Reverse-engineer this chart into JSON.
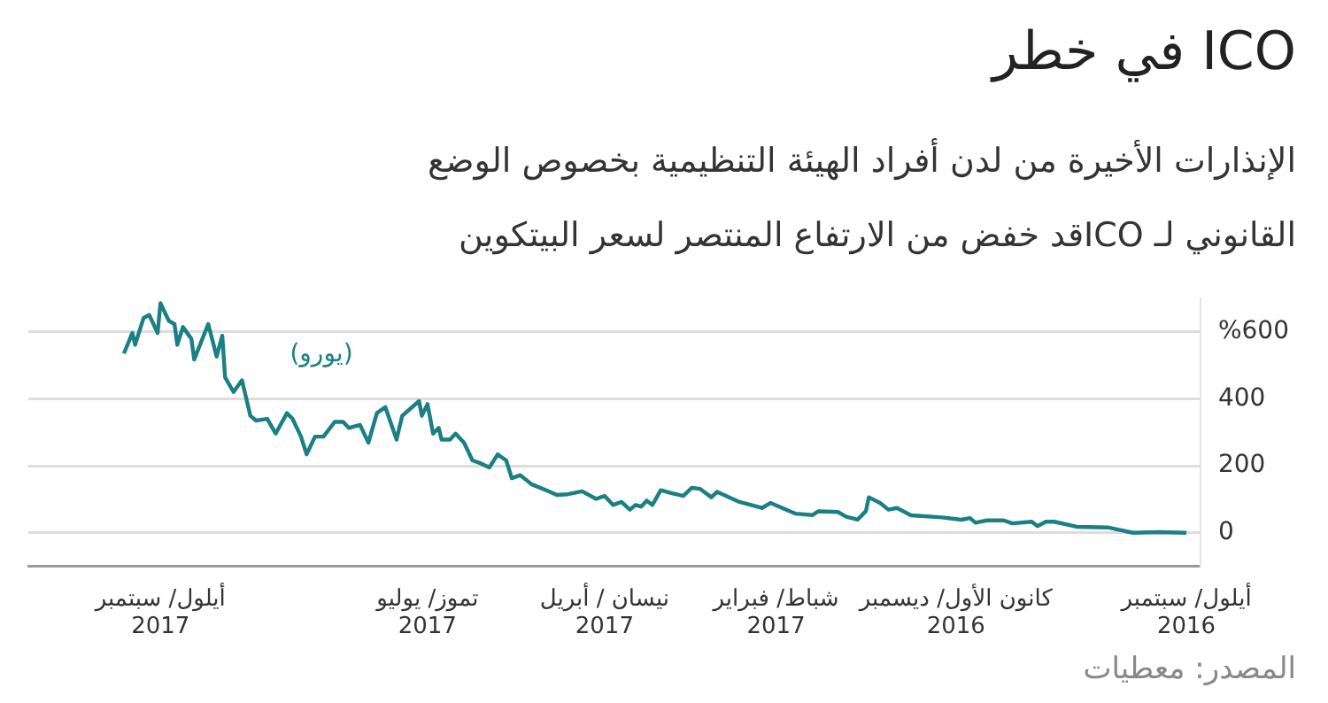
{
  "chart_data": {
    "type": "line",
    "title": "ICO في خطر",
    "subtitle": "الإنذارات الأخيرة من لدن أفراد الهيئة التنظيمية بخصوص الوضع\nالقانوني لـ ICOقد خفض من الارتفاع المنتصر لسعر البيتكوين",
    "annotations": [
      "المصدر: معطيات"
    ],
    "xlim": [
      "2017-10-18",
      "2016-08-27"
    ],
    "xticks": [
      {
        "value": "2017-09-01",
        "label": "أيلول/ سبتمبر\n2017"
      },
      {
        "value": "2017-05-29",
        "label": "تموز/ يوليو\n2017"
      },
      {
        "value": "2017-03-27",
        "label": "نيسان / أبريل\n2017"
      },
      {
        "value": "2017-01-25",
        "label": "شباط/ فبراير\n2017"
      },
      {
        "value": "2016-11-22",
        "label": "كانون الأول/ ديسمبر\n2016"
      },
      {
        "value": "2016-09-01",
        "label": "أيلول/ سبتمبر\n2016"
      }
    ],
    "ylim": [
      -100,
      700
    ],
    "yticks": [
      0,
      200,
      400,
      {
        "value": 600,
        "label": "%600"
      }
    ],
    "grid": "y",
    "legend": false,
    "marker": "none",
    "line_style": "solid",
    "series": [
      {
        "name": "(يورو)",
        "color": "#1b7f86",
        "x": [
          "2017-09-14",
          "2017-09-11",
          "2017-09-10",
          "2017-09-07",
          "2017-09-05",
          "2017-09-02",
          "2017-09-01",
          "2017-08-29",
          "2017-08-27",
          "2017-08-26",
          "2017-08-24",
          "2017-08-21",
          "2017-08-20",
          "2017-08-15",
          "2017-08-12",
          "2017-08-10",
          "2017-08-09",
          "2017-08-06",
          "2017-08-03",
          "2017-07-31",
          "2017-07-29",
          "2017-07-25",
          "2017-07-22",
          "2017-07-18",
          "2017-07-16",
          "2017-07-13",
          "2017-07-11",
          "2017-07-08",
          "2017-07-05",
          "2017-07-01",
          "2017-06-28",
          "2017-06-26",
          "2017-06-22",
          "2017-06-19",
          "2017-06-16",
          "2017-06-13",
          "2017-06-09",
          "2017-06-07",
          "2017-06-01",
          "2017-05-31",
          "2017-05-29",
          "2017-05-27",
          "2017-05-25",
          "2017-05-24",
          "2017-05-21",
          "2017-05-19",
          "2017-05-16",
          "2017-05-13",
          "2017-05-10",
          "2017-05-07",
          "2017-05-04",
          "2017-05-01",
          "2017-04-29",
          "2017-04-26",
          "2017-04-22",
          "2017-04-16",
          "2017-04-13",
          "2017-04-09",
          "2017-04-04",
          "2017-03-30",
          "2017-03-27",
          "2017-03-24",
          "2017-03-21",
          "2017-03-18",
          "2017-03-16",
          "2017-03-14",
          "2017-03-12",
          "2017-03-10",
          "2017-03-07",
          "2017-03-03",
          "2017-02-27",
          "2017-02-24",
          "2017-02-21",
          "2017-02-17",
          "2017-02-15",
          "2017-02-07",
          "2017-01-30",
          "2017-01-27",
          "2017-01-18",
          "2017-01-12",
          "2017-01-10",
          "2017-01-03",
          "2016-12-31",
          "2016-12-27",
          "2016-12-24",
          "2016-12-23",
          "2016-12-19",
          "2016-12-16",
          "2016-12-13",
          "2016-12-08",
          "2016-11-27",
          "2016-11-20",
          "2016-11-17",
          "2016-11-15",
          "2016-11-11",
          "2016-11-05",
          "2016-11-02",
          "2016-10-26",
          "2016-10-24",
          "2016-10-21",
          "2016-10-18",
          "2016-10-10",
          "2016-09-29",
          "2016-09-25",
          "2016-09-20",
          "2016-09-11",
          "2016-09-01"
        ],
        "values": [
          535,
          596,
          561,
          641,
          650,
          596,
          685,
          632,
          623,
          561,
          614,
          579,
          517,
          623,
          526,
          588,
          464,
          420,
          455,
          349,
          335,
          340,
          296,
          357,
          340,
          287,
          234,
          287,
          287,
          331,
          331,
          313,
          322,
          269,
          357,
          375,
          278,
          349,
          393,
          349,
          384,
          296,
          313,
          278,
          278,
          296,
          269,
          216,
          207,
          195,
          234,
          216,
          163,
          172,
          145,
          124,
          113,
          115,
          124,
          101,
          110,
          83,
          92,
          69,
          83,
          78,
          96,
          83,
          127,
          118,
          110,
          134,
          131,
          106,
          122,
          92,
          74,
          89,
          57,
          53,
          64,
          62,
          48,
          39,
          65,
          106,
          89,
          69,
          74,
          52,
          46,
          39,
          44,
          30,
          37,
          37,
          28,
          33,
          20,
          33,
          33,
          18,
          16,
          9,
          0,
          2,
          0
        ]
      }
    ]
  }
}
